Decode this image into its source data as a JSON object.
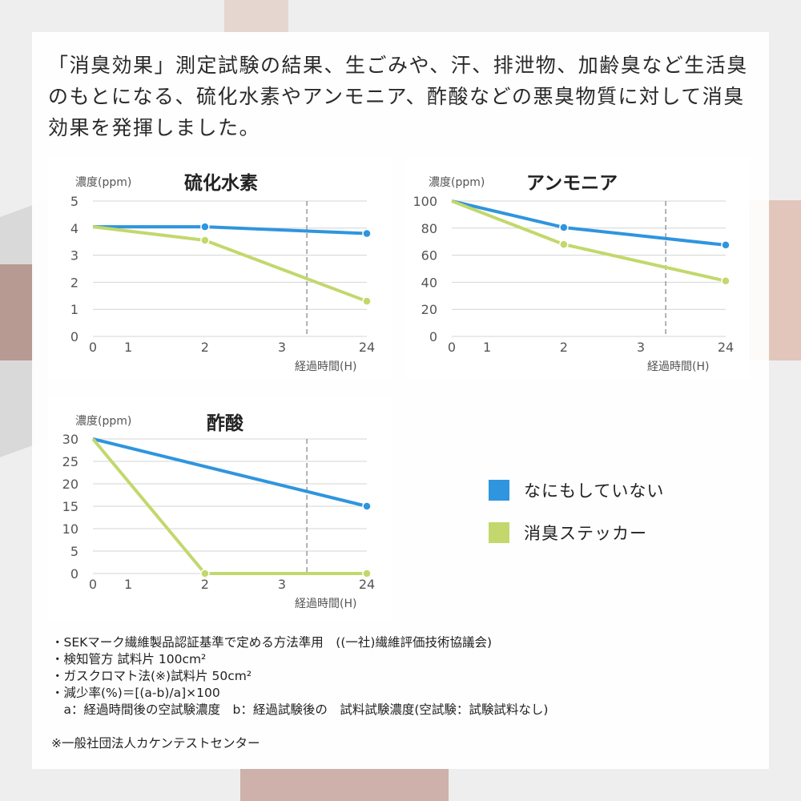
{
  "intro": "「消臭効果」測定試験の結果、生ごみや、汗、排泄物、加齢臭など生活臭のもとになる、硫化水素やアンモニア、酢酸などの悪臭物質に対して消臭効果を発揮しました。",
  "colors": {
    "none": "#2f95de",
    "sticker": "#c2d86c",
    "grid": "#d4d4d4",
    "divider": "#999999"
  },
  "legend": [
    {
      "label": "なにもしていない",
      "color": "#2f95de"
    },
    {
      "label": "消臭ステッカー",
      "color": "#c2d86c"
    }
  ],
  "chart_data": [
    {
      "type": "line",
      "title": "硫化水素",
      "ylabel": "濃度(ppm)",
      "xlabel": "経過時間(H)",
      "ylim": [
        0,
        5
      ],
      "yticks": [
        "0",
        "1",
        "2",
        "3",
        "4",
        "5"
      ],
      "xticks": [
        "0",
        "1",
        "2",
        "3",
        "24"
      ],
      "axis_break": "between 3 and 24",
      "grid": true,
      "series": [
        {
          "key": "none",
          "points": [
            [
              0,
              4.05
            ],
            [
              2,
              4.05
            ],
            [
              24,
              3.8
            ]
          ],
          "markers": [
            2,
            24
          ]
        },
        {
          "key": "sticker",
          "points": [
            [
              0,
              4.05
            ],
            [
              2,
              3.55
            ],
            [
              24,
              1.3
            ]
          ],
          "markers": [
            2,
            24
          ]
        }
      ]
    },
    {
      "type": "line",
      "title": "アンモニア",
      "ylabel": "濃度(ppm)",
      "xlabel": "経過時間(H)",
      "ylim": [
        0,
        100
      ],
      "yticks": [
        "0",
        "20",
        "40",
        "60",
        "80",
        "100"
      ],
      "xticks": [
        "0",
        "1",
        "2",
        "3",
        "24"
      ],
      "axis_break": "between 3 and 24",
      "grid": true,
      "series": [
        {
          "key": "none",
          "points": [
            [
              0,
              100
            ],
            [
              2,
              80.5
            ],
            [
              24,
              67.5
            ]
          ],
          "markers": [
            2,
            24
          ]
        },
        {
          "key": "sticker",
          "points": [
            [
              0,
              100
            ],
            [
              2,
              68
            ],
            [
              24,
              41
            ]
          ],
          "markers": [
            2,
            24
          ]
        }
      ]
    },
    {
      "type": "line",
      "title": "酢酸",
      "ylabel": "濃度(ppm)",
      "xlabel": "経過時間(H)",
      "ylim": [
        0,
        30
      ],
      "yticks": [
        "0",
        "5",
        "10",
        "15",
        "20",
        "25",
        "30"
      ],
      "xticks": [
        "0",
        "1",
        "2",
        "3",
        "24"
      ],
      "axis_break": "between 3 and 24",
      "grid": true,
      "series": [
        {
          "key": "none",
          "points": [
            [
              0,
              30
            ],
            [
              24,
              15
            ]
          ],
          "markers": [
            24
          ]
        },
        {
          "key": "sticker",
          "points": [
            [
              0,
              30
            ],
            [
              2,
              0
            ],
            [
              24,
              0
            ]
          ],
          "markers": [
            2,
            24
          ]
        }
      ]
    }
  ],
  "notes": [
    "・SEKマーク繊維製品認証基準で定める方法準用　((一社)繊維評価技術協議会)",
    "・検知管方 試料片 100cm²",
    "・ガスクロマト法(※)試料片 50cm²",
    "・減少率(%)＝[(a-b)/a]×100",
    "　a：経過時間後の空試験濃度　b：経過試験後の　試料試験濃度(空試験：試験試料なし)",
    "",
    "※一般社団法人カケンテストセンター"
  ]
}
